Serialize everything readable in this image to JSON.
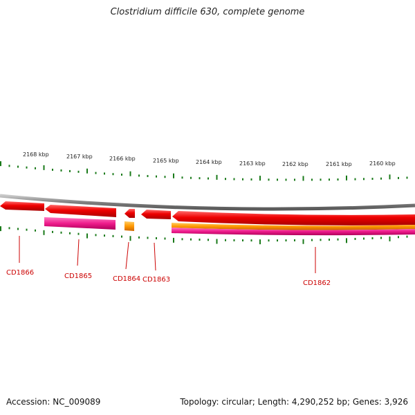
{
  "title": "Clostridium difficile 630, complete genome",
  "ruler": {
    "tick_labels": [
      "2168 kbp",
      "2167 kbp",
      "2166 kbp",
      "2165 kbp",
      "2164 kbp",
      "2163 kbp",
      "2162 kbp",
      "2161 kbp",
      "2160 kbp"
    ]
  },
  "genes": [
    {
      "label": "CD1866",
      "color": "#dd0000"
    },
    {
      "label": "CD1865",
      "color": "#dd0000"
    },
    {
      "label": "CD1864",
      "color": "#dd0000"
    },
    {
      "label": "CD1863",
      "color": "#dd0000"
    },
    {
      "label": "CD1862",
      "color": "#dd0000"
    }
  ],
  "colors": {
    "backbone": "#808080",
    "gene": "#ee0000",
    "feature_magenta": "#ee1c8c",
    "feature_orange": "#ff9900",
    "tick": "#1a7a1a",
    "label": "#cc0000"
  },
  "footer": {
    "accession": "Accession: NC_009089",
    "summary": "Topology: circular; Length: 4,290,252 bp; Genes: 3,926"
  }
}
